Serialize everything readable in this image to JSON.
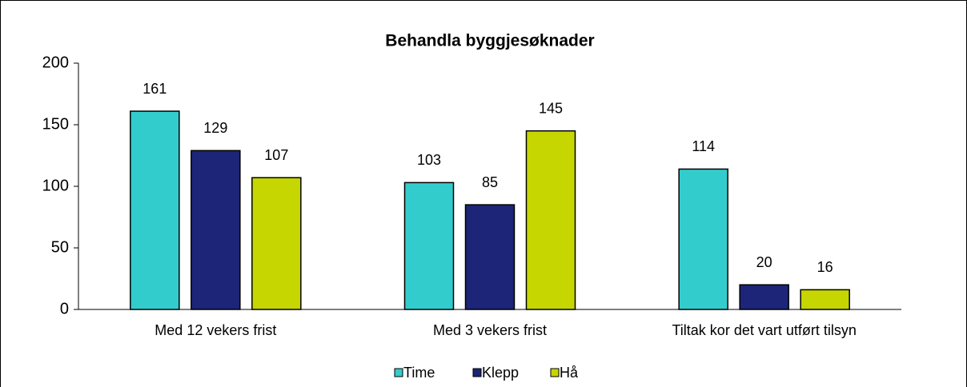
{
  "chart_data": {
    "type": "bar",
    "title": "Behandla byggjesøknader",
    "categories": [
      "Med 12 vekers frist",
      "Med 3 vekers frist",
      "Tiltak kor det vart utført tilsyn"
    ],
    "series": [
      {
        "name": "Time",
        "color": "#33cccc",
        "values": [
          161,
          103,
          114
        ]
      },
      {
        "name": "Klepp",
        "color": "#1c2577",
        "values": [
          129,
          85,
          20
        ]
      },
      {
        "name": "Hå",
        "color": "#c6d600",
        "values": [
          107,
          145,
          16
        ]
      }
    ],
    "ylim": [
      0,
      200
    ],
    "yticks": [
      0,
      50,
      100,
      150,
      200
    ],
    "grid": false,
    "legend": "bottom"
  }
}
